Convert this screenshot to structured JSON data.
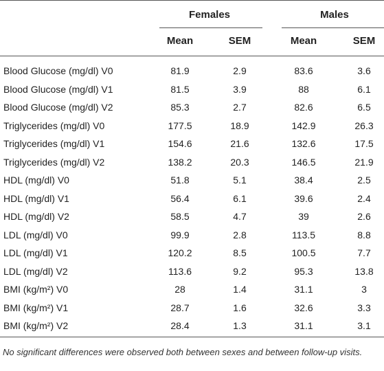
{
  "table": {
    "group_headers": [
      "Females",
      "Males"
    ],
    "column_headers": [
      "Mean",
      "SEM",
      "Mean",
      "SEM"
    ],
    "rows": [
      {
        "label": "Blood Glucose (mg/dl) V0",
        "values": [
          81.9,
          2.9,
          83.6,
          3.6
        ]
      },
      {
        "label": "Blood Glucose (mg/dl) V1",
        "values": [
          81.5,
          3.9,
          88,
          6.1
        ]
      },
      {
        "label": "Blood Glucose (mg/dl) V2",
        "values": [
          85.3,
          2.7,
          82.6,
          6.5
        ]
      },
      {
        "label": "Triglycerides (mg/dl) V0",
        "values": [
          177.5,
          18.9,
          142.9,
          26.3
        ]
      },
      {
        "label": "Triglycerides (mg/dl) V1",
        "values": [
          154.6,
          21.6,
          132.6,
          17.5
        ]
      },
      {
        "label": "Triglycerides (mg/dl) V2",
        "values": [
          138.2,
          20.3,
          146.5,
          21.9
        ]
      },
      {
        "label": "HDL (mg/dl) V0",
        "values": [
          51.8,
          5.1,
          38.4,
          2.5
        ]
      },
      {
        "label": "HDL (mg/dl) V1",
        "values": [
          56.4,
          6.1,
          39.6,
          2.4
        ]
      },
      {
        "label": "HDL (mg/dl) V2",
        "values": [
          58.5,
          4.7,
          39,
          2.6
        ]
      },
      {
        "label": "LDL (mg/dl) V0",
        "values": [
          99.9,
          2.8,
          113.5,
          8.8
        ]
      },
      {
        "label": "LDL (mg/dl) V1",
        "values": [
          120.2,
          8.5,
          100.5,
          7.7
        ]
      },
      {
        "label": "LDL (mg/dl) V2",
        "values": [
          113.6,
          9.2,
          95.3,
          13.8
        ]
      },
      {
        "label": "BMI (kg/m²) V0",
        "values": [
          28,
          1.4,
          31.1,
          3
        ]
      },
      {
        "label": "BMI (kg/m²) V1",
        "values": [
          28.7,
          1.6,
          32.6,
          3.3
        ]
      },
      {
        "label": "BMI (kg/m²) V2",
        "values": [
          28.4,
          1.3,
          31.1,
          3.1
        ]
      }
    ],
    "footnote": "No significant differences were observed both between sexes and between follow-up visits."
  }
}
